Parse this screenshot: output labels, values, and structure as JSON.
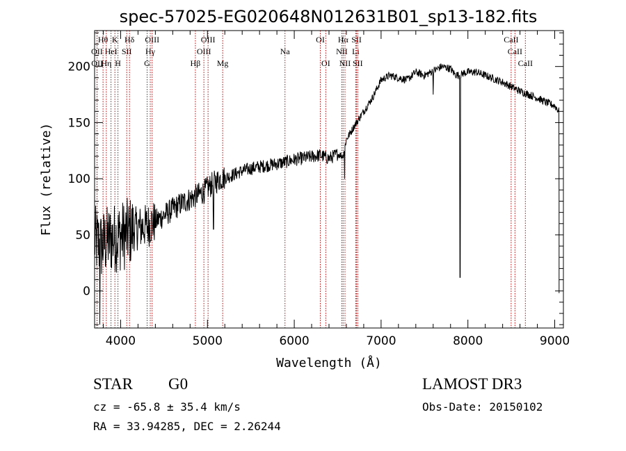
{
  "chart_data": {
    "type": "line",
    "title": "spec-57025-EG020648N012631B01_sp13-182.fits",
    "xlabel": "Wavelength (Å)",
    "ylabel": "Flux (relative)",
    "xlim": [
      3700,
      9100
    ],
    "ylim": [
      -33,
      232
    ],
    "x_ticks": [
      4000,
      5000,
      6000,
      7000,
      8000,
      9000
    ],
    "y_ticks": [
      0,
      50,
      100,
      150,
      200
    ],
    "grid": false,
    "series": [
      {
        "name": "flux",
        "x": [
          3700,
          3780,
          3850,
          3950,
          4050,
          4150,
          4300,
          4400,
          4550,
          4700,
          4850,
          4950,
          5050,
          5150,
          5250,
          5400,
          5550,
          5700,
          5850,
          6000,
          6150,
          6300,
          6400,
          6500,
          6560,
          6600,
          6700,
          6800,
          6900,
          7000,
          7100,
          7200,
          7300,
          7400,
          7500,
          7600,
          7700,
          7800,
          7850,
          7900,
          7950,
          8000,
          8100,
          8200,
          8300,
          8400,
          8500,
          8600,
          8700,
          8800,
          8900,
          9000,
          9050
        ],
        "y": [
          45,
          40,
          45,
          48,
          50,
          55,
          58,
          62,
          70,
          78,
          84,
          88,
          95,
          100,
          102,
          107,
          110,
          112,
          114,
          117,
          119,
          121,
          118,
          122,
          120,
          135,
          148,
          160,
          172,
          188,
          192,
          190,
          188,
          195,
          192,
          196,
          200,
          198,
          193,
          192,
          194,
          195,
          195,
          192,
          189,
          186,
          182,
          178,
          175,
          172,
          168,
          165,
          160
        ]
      }
    ],
    "dips": [
      {
        "x": 3760,
        "y": -30
      },
      {
        "x": 5070,
        "y": 55
      },
      {
        "x": 6580,
        "y": 100
      },
      {
        "x": 7600,
        "y": 175
      },
      {
        "x": 7910,
        "y": 12
      }
    ],
    "spectral_lines": [
      {
        "label": "Hθ",
        "x": 3797,
        "row": 1
      },
      {
        "label": "K",
        "x": 3934,
        "row": 1
      },
      {
        "label": "Hδ",
        "x": 4102,
        "row": 1
      },
      {
        "label": "OIII",
        "x": 4363,
        "row": 1
      },
      {
        "label": "OIII",
        "x": 5007,
        "row": 1
      },
      {
        "label": "OI",
        "x": 6300,
        "row": 1
      },
      {
        "label": "Hα",
        "x": 6563,
        "row": 1
      },
      {
        "label": "SII",
        "x": 6717,
        "row": 1
      },
      {
        "label": "CaII",
        "x": 8498,
        "row": 1
      },
      {
        "label": "OII",
        "x": 3727,
        "row": 2
      },
      {
        "label": "HeI",
        "x": 3889,
        "row": 2
      },
      {
        "label": "SII",
        "x": 4070,
        "row": 2
      },
      {
        "label": "Hγ",
        "x": 4341,
        "row": 2
      },
      {
        "label": "OIII",
        "x": 4959,
        "row": 2
      },
      {
        "label": "Na",
        "x": 5893,
        "row": 2
      },
      {
        "label": "NII",
        "x": 6548,
        "row": 2
      },
      {
        "label": "Li",
        "x": 6708,
        "row": 2
      },
      {
        "label": "CaII",
        "x": 8542,
        "row": 2
      },
      {
        "label": "OII",
        "x": 3729,
        "row": 3
      },
      {
        "label": "Hη",
        "x": 3835,
        "row": 3
      },
      {
        "label": "H",
        "x": 3969,
        "row": 3
      },
      {
        "label": "G",
        "x": 4305,
        "row": 3
      },
      {
        "label": "Hβ",
        "x": 4861,
        "row": 3
      },
      {
        "label": "Mg",
        "x": 5175,
        "row": 3
      },
      {
        "label": "OI",
        "x": 6363,
        "row": 3
      },
      {
        "label": "NII",
        "x": 6584,
        "row": 3
      },
      {
        "label": "SII",
        "x": 6731,
        "row": 3
      },
      {
        "label": "CaII",
        "x": 8662,
        "row": 3
      }
    ],
    "line_color": "#cc0000",
    "data_color": "#000000"
  },
  "info": {
    "object_class": "STAR",
    "subclass": "G0",
    "survey": "LAMOST DR3",
    "redshift": "cz = -65.8 ± 35.4 km/s",
    "obs_date": "Obs-Date: 20150102",
    "coords": "RA =  33.94285, DEC =   2.26244"
  }
}
